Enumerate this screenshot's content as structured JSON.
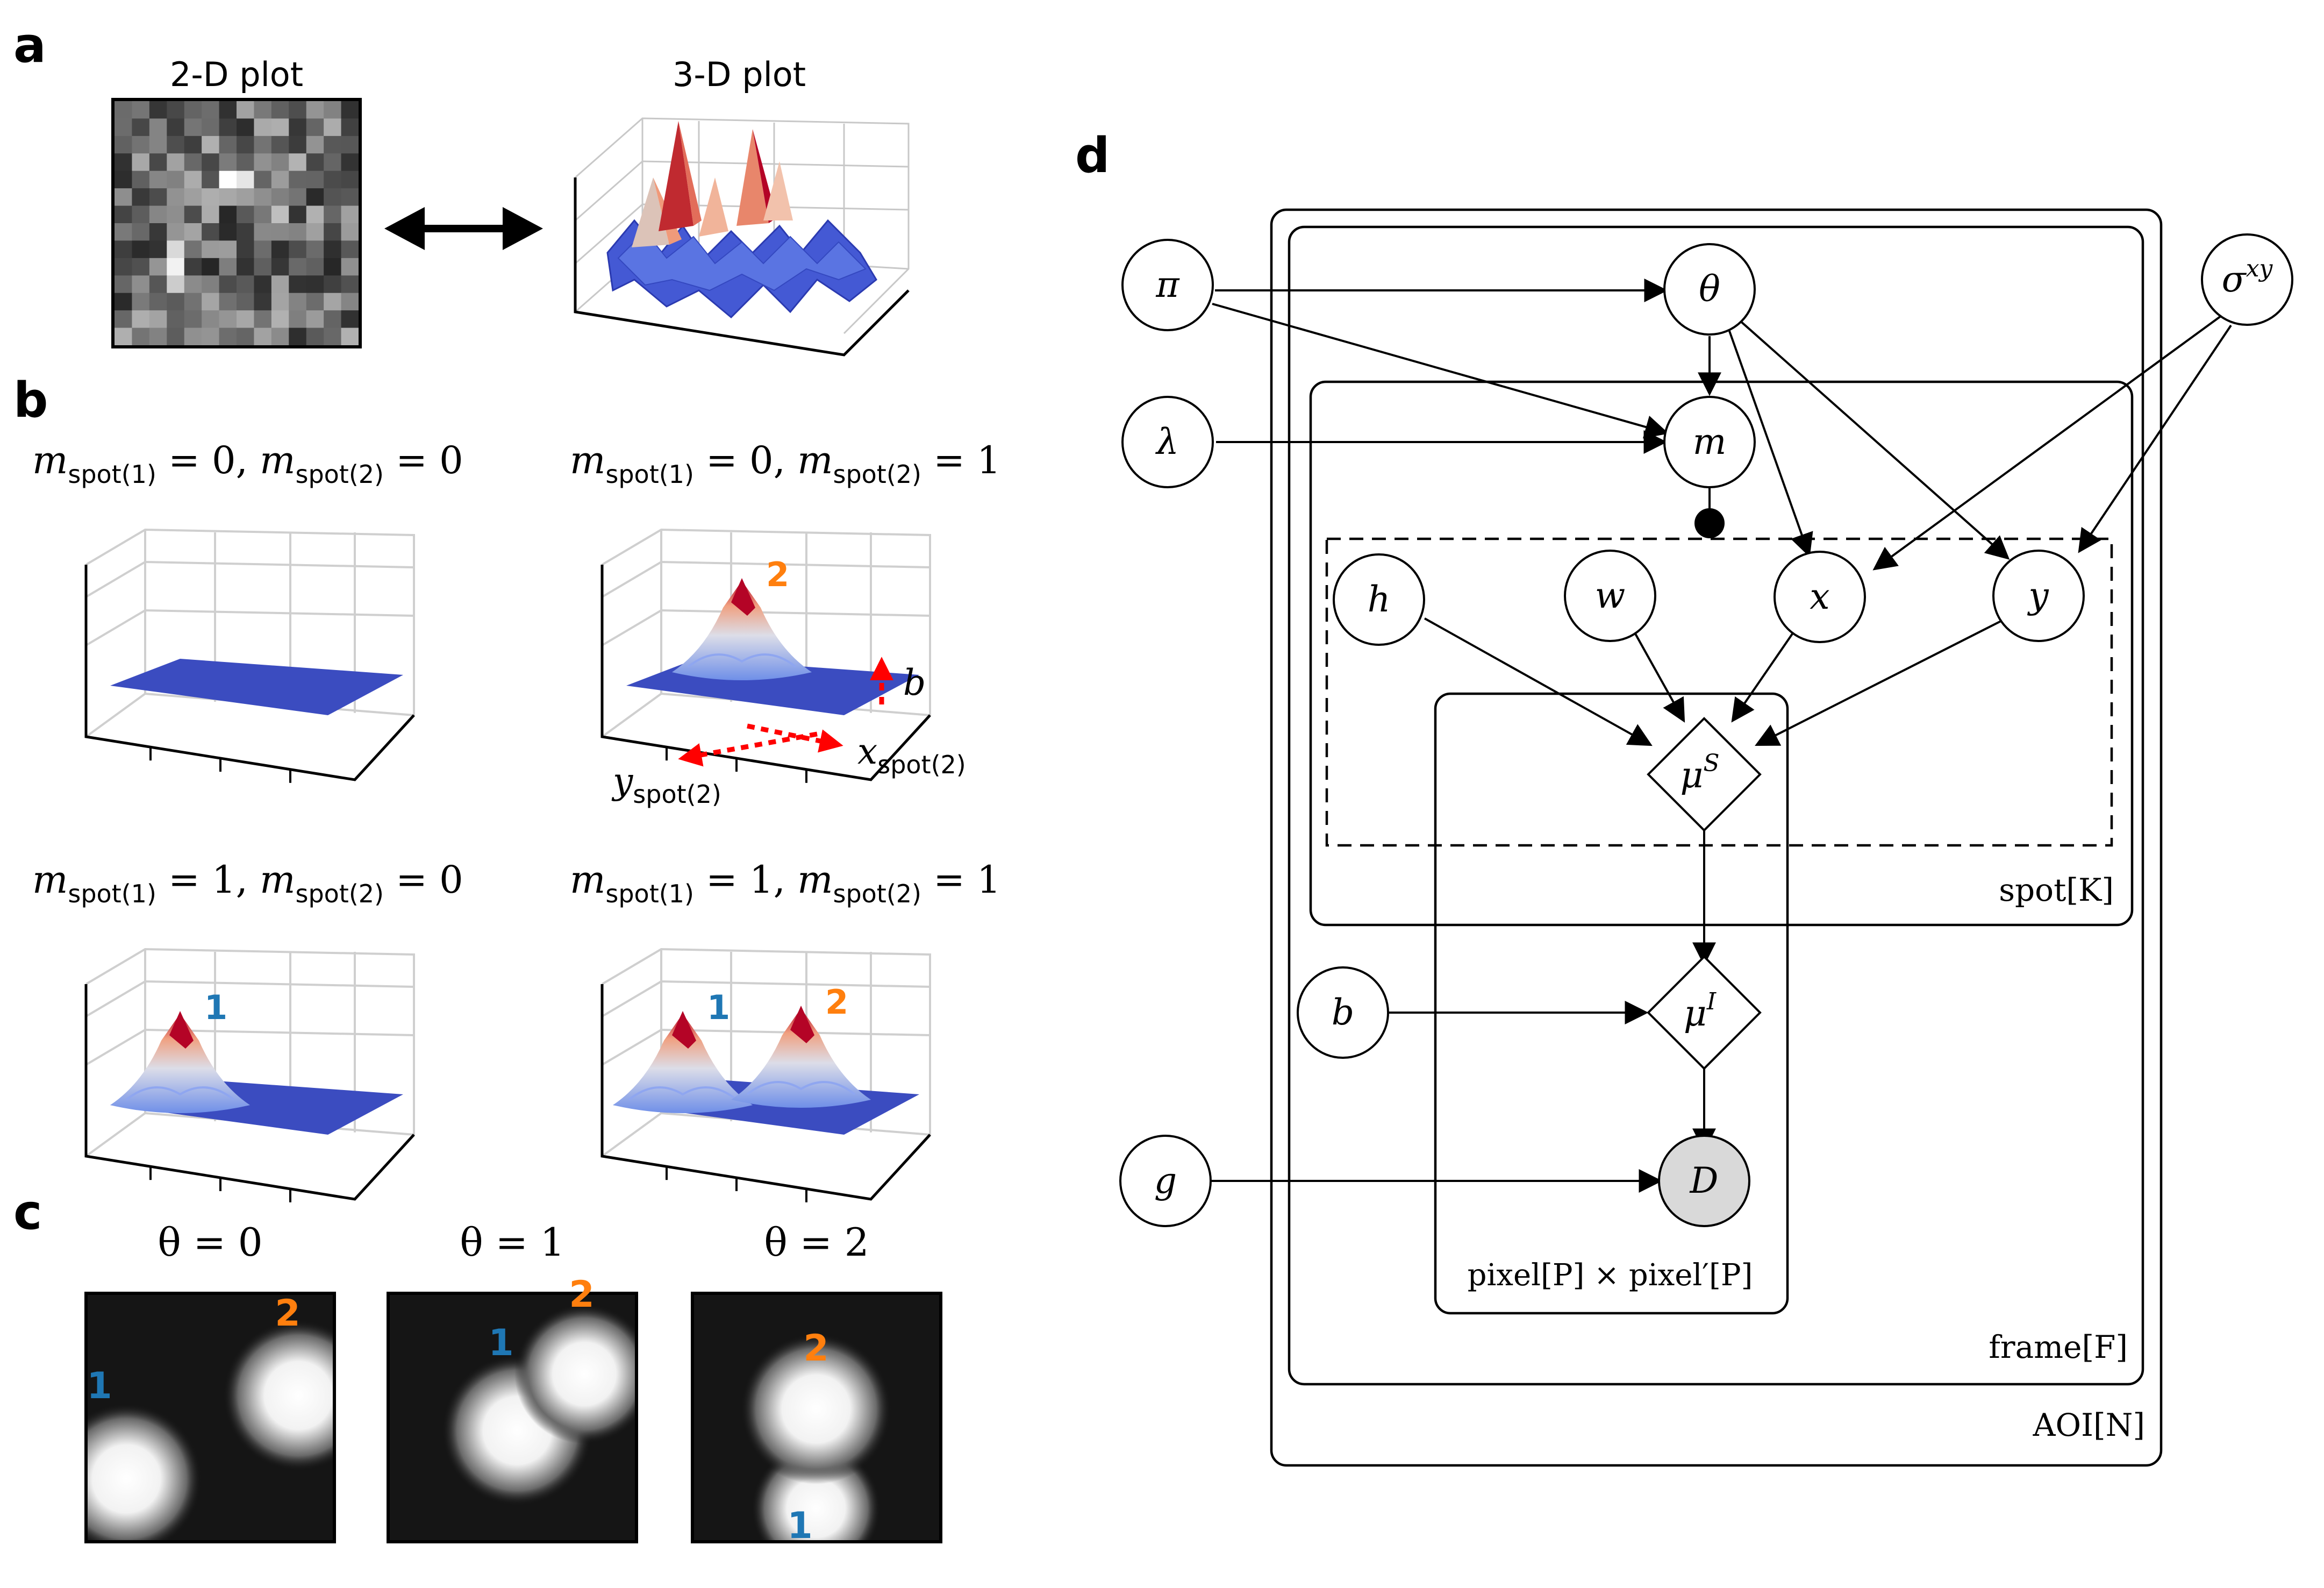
{
  "panels": {
    "a": {
      "letter": "a",
      "plot2d_title": "2-D plot",
      "plot3d_title": "3-D plot"
    },
    "b": {
      "letter": "b",
      "conditions": [
        {
          "m1": "0",
          "m2": "0",
          "peaks": []
        },
        {
          "m1": "0",
          "m2": "1",
          "peaks": [
            "2"
          ]
        },
        {
          "m1": "1",
          "m2": "0",
          "peaks": [
            "1"
          ]
        },
        {
          "m1": "1",
          "m2": "1",
          "peaks": [
            "1",
            "2"
          ]
        }
      ],
      "m_symbol": "m",
      "spot1_sub": "spot(1)",
      "spot2_sub": "spot(2)",
      "annot_b": "b",
      "annot_x": "x",
      "annot_y": "y",
      "annot_x_sub": "spot(2)",
      "annot_y_sub": "spot(2)"
    },
    "c": {
      "letter": "c",
      "images": [
        {
          "title": "θ = 0",
          "spots": [
            "1",
            "2"
          ]
        },
        {
          "title": "θ = 1",
          "spots": [
            "1",
            "2"
          ]
        },
        {
          "title": "θ = 2",
          "spots": [
            "2",
            "1"
          ]
        }
      ]
    },
    "d": {
      "letter": "d",
      "nodes": {
        "pi": "π",
        "theta": "θ",
        "sigma": "σ",
        "sigma_sup": "xy",
        "lambda": "λ",
        "m": "m",
        "h": "h",
        "w": "w",
        "x": "x",
        "y": "y",
        "muS": "μ",
        "muS_sup": "S",
        "b": "b",
        "muI": "μ",
        "muI_sup": "I",
        "g": "g",
        "D": "D"
      },
      "plates": {
        "spot": "spot[K]",
        "pixel": "pixel[P] × pixel′[P]",
        "frame": "frame[F]",
        "aoi": "AOI[N]"
      }
    }
  },
  "colors": {
    "spot1_label": "#1f77b4",
    "spot2_label": "#ff7f0e",
    "surface_low": "#3b4cc0",
    "surface_high": "#b40426",
    "arrow_red": "#ff0000",
    "observed_node": "#d9d9d9"
  }
}
